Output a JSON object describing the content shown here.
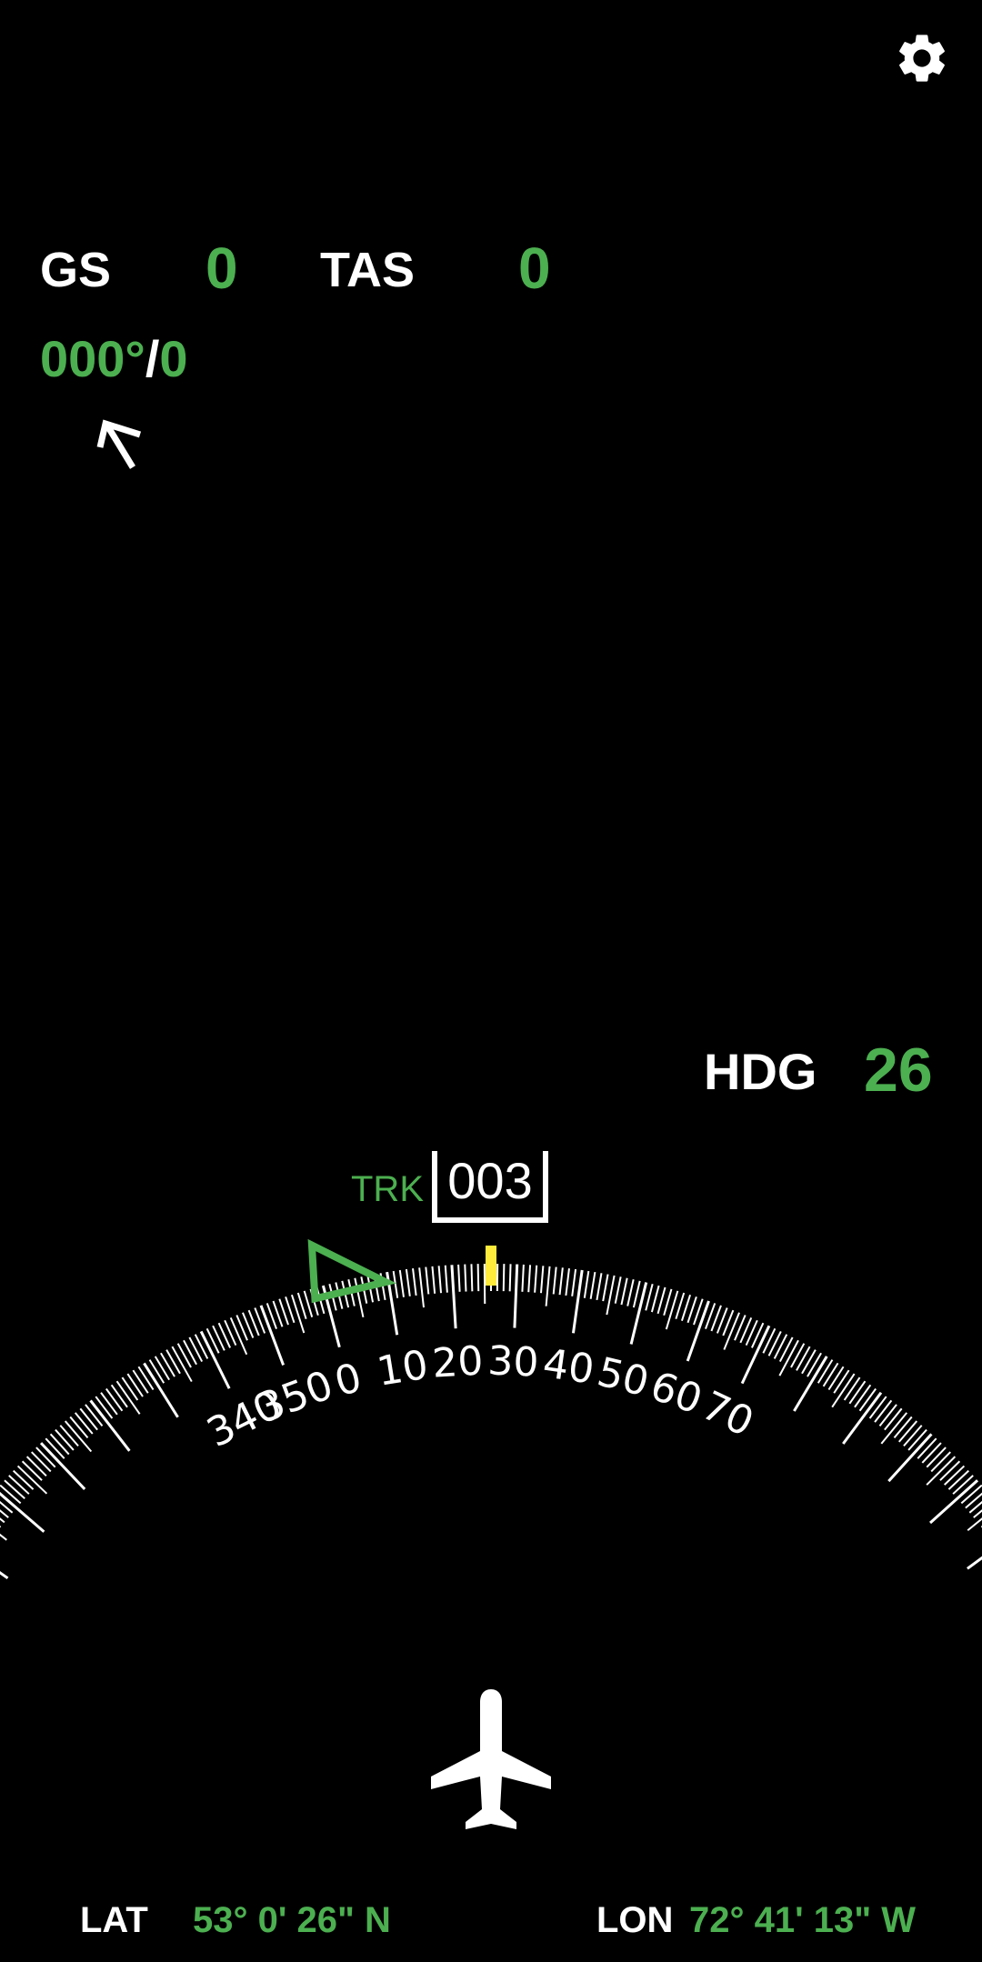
{
  "header": {
    "settings_icon": "gear-icon"
  },
  "speeds": {
    "gs_label": "GS",
    "gs_value": "0",
    "tas_label": "TAS",
    "tas_value": "0"
  },
  "wind": {
    "direction": "000°",
    "separator": "/",
    "speed": "0",
    "arrow_icon": "wind-arrow-icon"
  },
  "heading": {
    "label": "HDG",
    "value": "26"
  },
  "track": {
    "label": "TRK",
    "value": "003"
  },
  "compass": {
    "heading_deg": 26,
    "track_deg": 3,
    "tick_labels": [
      "340",
      "350",
      "0",
      "10",
      "20",
      "30",
      "40",
      "50",
      "60",
      "70"
    ],
    "tick_values": [
      340,
      350,
      0,
      10,
      20,
      30,
      40,
      50,
      60,
      70
    ],
    "heading_marker_color": "#ffeb3b",
    "track_marker_color": "#4caf50"
  },
  "aircraft_icon": "airplane-icon",
  "position": {
    "lat_label": "LAT",
    "lat_value": "53° 0' 26\" N",
    "lon_label": "LON",
    "lon_value": "72° 41' 13\" W"
  },
  "colors": {
    "background": "#000000",
    "value_green": "#4caf50",
    "label_white": "#ffffff"
  }
}
